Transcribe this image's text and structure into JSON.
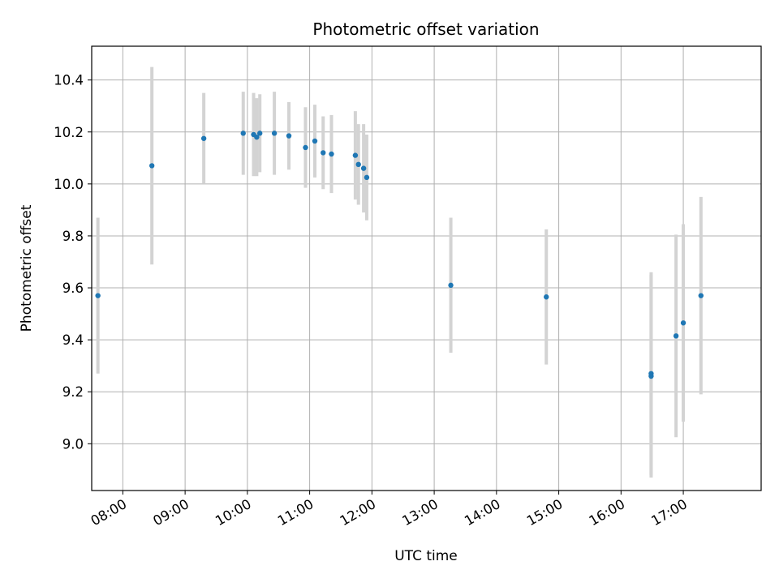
{
  "chart_data": {
    "type": "scatter",
    "title": "Photometric offset variation",
    "xlabel": "UTC time",
    "ylabel": "Photometric offset",
    "grid": true,
    "xlim": [
      "07:30",
      "18:15"
    ],
    "ylim": [
      8.82,
      10.53
    ],
    "xticks": [
      "08:00",
      "09:00",
      "10:00",
      "11:00",
      "12:00",
      "13:00",
      "14:00",
      "15:00",
      "16:00",
      "17:00"
    ],
    "yticks": [
      "9.0",
      "9.2",
      "9.4",
      "9.6",
      "9.8",
      "10.0",
      "10.2",
      "10.4"
    ],
    "colors": {
      "points": "#1f77b4",
      "errorbars": "#d3d3d3",
      "grid": "#b0b0b0"
    },
    "points": [
      {
        "x": "07:36",
        "y": 9.57,
        "err": 0.3
      },
      {
        "x": "08:28",
        "y": 10.07,
        "err": 0.38
      },
      {
        "x": "09:18",
        "y": 10.175,
        "err": 0.175
      },
      {
        "x": "09:56",
        "y": 10.195,
        "err": 0.16
      },
      {
        "x": "10:06",
        "y": 10.19,
        "err": 0.16
      },
      {
        "x": "10:09",
        "y": 10.18,
        "err": 0.15
      },
      {
        "x": "10:12",
        "y": 10.195,
        "err": 0.15
      },
      {
        "x": "10:26",
        "y": 10.195,
        "err": 0.16
      },
      {
        "x": "10:40",
        "y": 10.185,
        "err": 0.13
      },
      {
        "x": "10:56",
        "y": 10.14,
        "err": 0.155
      },
      {
        "x": "11:05",
        "y": 10.165,
        "err": 0.14
      },
      {
        "x": "11:13",
        "y": 10.12,
        "err": 0.14
      },
      {
        "x": "11:21",
        "y": 10.115,
        "err": 0.15
      },
      {
        "x": "11:44",
        "y": 10.11,
        "err": 0.17
      },
      {
        "x": "11:47",
        "y": 10.075,
        "err": 0.155
      },
      {
        "x": "11:52",
        "y": 10.06,
        "err": 0.17
      },
      {
        "x": "11:55",
        "y": 10.025,
        "err": 0.165
      },
      {
        "x": "13:16",
        "y": 9.61,
        "err": 0.26
      },
      {
        "x": "14:48",
        "y": 9.565,
        "err": 0.26
      },
      {
        "x": "16:29",
        "y": 9.27,
        "err": 0.39
      },
      {
        "x": "16:29",
        "y": 9.26,
        "err": 0.39
      },
      {
        "x": "16:53",
        "y": 9.415,
        "err": 0.39
      },
      {
        "x": "17:00",
        "y": 9.465,
        "err": 0.38
      },
      {
        "x": "17:17",
        "y": 9.57,
        "err": 0.38
      }
    ]
  }
}
